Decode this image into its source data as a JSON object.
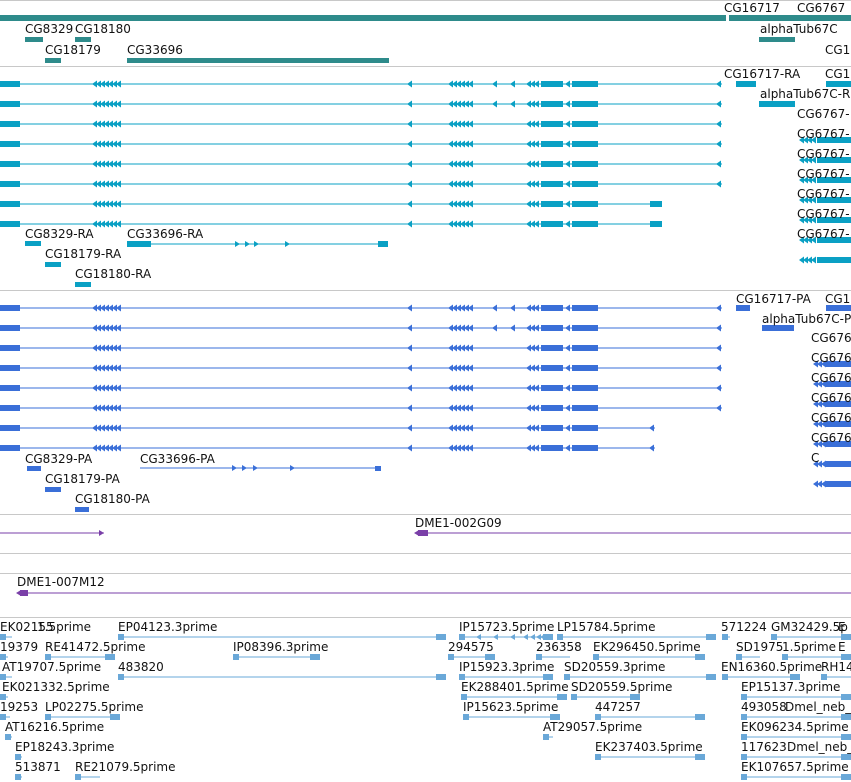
{
  "colors": {
    "gene": "#2e8b8b",
    "transcript": "#0aa0c4",
    "polypeptide": "#3a6fd8",
    "clone": "#7a3fa8",
    "est": "#6aa8d8",
    "separator": "#c8c8c8",
    "label": "#111111"
  },
  "tracks": {
    "genes": {
      "labels": [
        "CG16717",
        "CG6767",
        "CG8329",
        "CG18180",
        "alphaTub67C",
        "CG18179",
        "CG33696",
        "CG1"
      ]
    },
    "transcripts": {
      "labels": [
        "CG16717-RA",
        "CG1",
        "alphaTub67C-R",
        "CG6767-",
        "CG6767-",
        "CG6767-",
        "CG6767-",
        "CG6767-",
        "CG6767-",
        "CG6767-",
        "CG8329-RA",
        "CG33696-RA",
        "CG18179-RA",
        "CG18180-RA"
      ]
    },
    "polypeptides": {
      "labels": [
        "CG16717-PA",
        "CG1",
        "alphaTub67C-P",
        "CG676",
        "CG676",
        "CG676",
        "CG676",
        "CG676",
        "CG676",
        "C",
        "CG8329-PA",
        "CG33696-PA",
        "CG18179-PA",
        "CG18180-PA"
      ]
    },
    "clones_a": {
      "labels": [
        "DME1-002G09"
      ]
    },
    "clones_b": {
      "labels": [
        "DME1-007M12"
      ]
    },
    "ests": {
      "labels": [
        "EK02155",
        "1.5prime",
        "EP04123.3prime",
        "IP15723.5prime",
        "LP15784.5prime",
        "571224",
        "GM32429.5p",
        "E",
        "19379",
        "RE41472.5prime",
        "IP08396.3prime",
        "294575",
        "236358",
        "EK296450.5prime",
        "SD1975",
        "1.5prime",
        "E",
        "AT19707.5prime",
        "483820",
        "IP15923.3prime",
        "SD20559.3prime",
        "EN16360.5prime",
        "RH14",
        "EK021332.5prime",
        "EK288401.5prime",
        "SD20559.5prime",
        "EP15137.3prime",
        "19253",
        "LP02275.5prime",
        "IP15623.5prime",
        "447257",
        "493058",
        "Dmel_neb_",
        "AT16216.5prime",
        "AT29057.5prime",
        "EK096234.5prime",
        "EP18243.3prime",
        "EK237403.5prime",
        "117623",
        "Dmel_neb_",
        "513871",
        "RE21079.5prime",
        "EK107657.5prime"
      ]
    }
  }
}
